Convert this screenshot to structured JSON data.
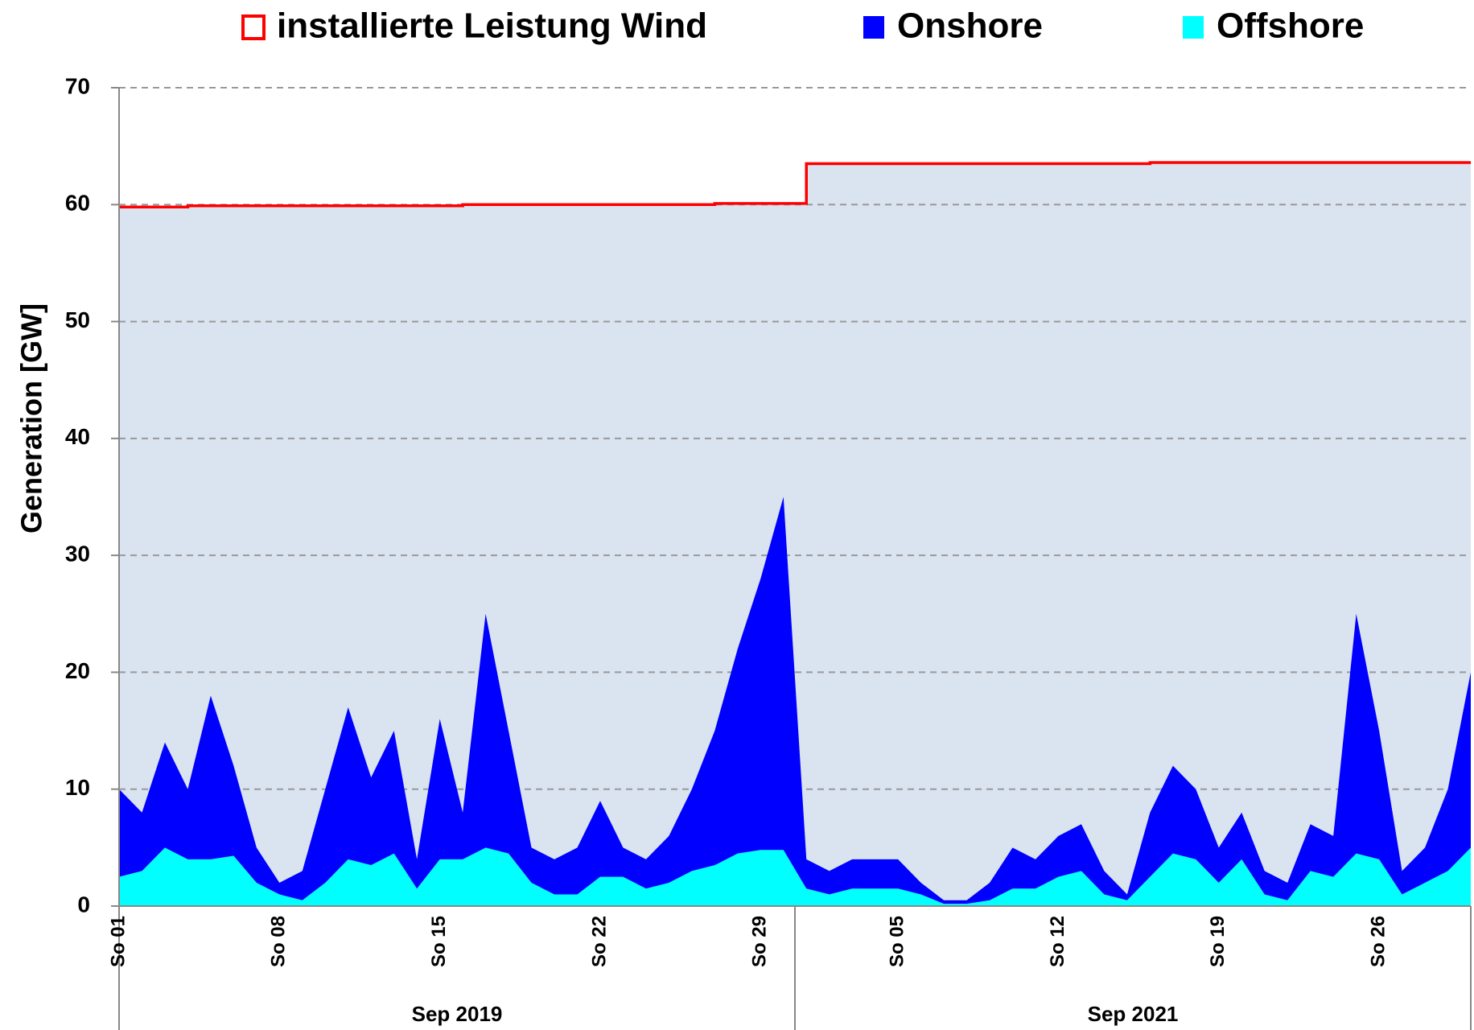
{
  "chart_data": {
    "type": "stacked_area",
    "y_label": "Generation   [GW]",
    "ylim": [
      0,
      70
    ],
    "yticks": [
      0,
      10,
      20,
      30,
      40,
      50,
      60,
      70
    ],
    "grid": true,
    "groups": [
      {
        "name": "Sep 2019",
        "categories": [
          "So 01",
          null,
          null,
          null,
          null,
          null,
          null,
          "So 08",
          null,
          null,
          null,
          null,
          null,
          null,
          "So 15",
          null,
          null,
          null,
          null,
          null,
          null,
          "So 22",
          null,
          null,
          null,
          null,
          null,
          null,
          "So 29",
          null
        ]
      },
      {
        "name": "Sep 2021",
        "categories": [
          null,
          null,
          null,
          null,
          "So 05",
          null,
          null,
          null,
          null,
          null,
          null,
          "So 12",
          null,
          null,
          null,
          null,
          null,
          null,
          "So 19",
          null,
          null,
          null,
          null,
          null,
          null,
          "So 26",
          null,
          null,
          null,
          null
        ]
      }
    ],
    "capacity": {
      "name": "installierte Leistung Wind",
      "color": "#ff0000",
      "fill": "#dae3f0",
      "values": [
        59.8,
        59.8,
        59.8,
        59.9,
        59.9,
        59.9,
        59.9,
        59.9,
        59.9,
        59.9,
        59.9,
        59.9,
        59.9,
        59.9,
        59.9,
        60.0,
        60.0,
        60.0,
        60.0,
        60.0,
        60.0,
        60.0,
        60.0,
        60.0,
        60.0,
        60.0,
        60.1,
        60.1,
        60.1,
        60.1,
        63.5,
        63.5,
        63.5,
        63.5,
        63.5,
        63.5,
        63.5,
        63.5,
        63.5,
        63.5,
        63.5,
        63.5,
        63.5,
        63.5,
        63.5,
        63.6,
        63.6,
        63.6,
        63.6,
        63.6,
        63.6,
        63.6,
        63.6,
        63.6,
        63.6,
        63.6,
        63.6,
        63.6,
        63.6,
        63.6
      ]
    },
    "series": [
      {
        "name": "Offshore",
        "color": "#00ffff",
        "values": [
          2.5,
          3,
          5,
          4,
          4,
          4.3,
          2,
          1,
          0.5,
          2,
          4,
          3.5,
          4.5,
          1.5,
          4,
          4,
          5,
          4.5,
          2,
          1,
          1,
          2.5,
          2.5,
          1.5,
          2,
          3,
          3.5,
          4.5,
          4.8,
          4.8,
          1.5,
          1,
          1.5,
          1.5,
          1.5,
          1,
          0.2,
          0.2,
          0.5,
          1.5,
          1.5,
          2.5,
          3,
          1,
          0.5,
          2.5,
          4.5,
          4,
          2,
          4,
          1,
          0.5,
          3,
          2.5,
          4.5,
          4,
          1,
          2,
          3,
          5
        ]
      },
      {
        "name": "Onshore",
        "color": "#0000ff",
        "values": [
          7.5,
          5,
          9,
          6,
          14,
          7.7,
          3,
          1,
          2.5,
          8,
          13,
          7.5,
          10.5,
          2.5,
          12,
          4,
          20,
          10.5,
          3,
          3,
          4,
          6.5,
          2.5,
          2.5,
          4,
          7,
          11.5,
          17.5,
          23.2,
          30.2,
          2.5,
          2,
          2.5,
          2.5,
          2.5,
          1,
          0.3,
          0.3,
          1.5,
          3.5,
          2.5,
          3.5,
          4,
          2,
          0.5,
          5.5,
          7.5,
          6,
          3,
          4,
          2,
          1.5,
          4,
          3.5,
          20.5,
          11,
          2,
          3,
          7,
          15
        ]
      }
    ]
  }
}
